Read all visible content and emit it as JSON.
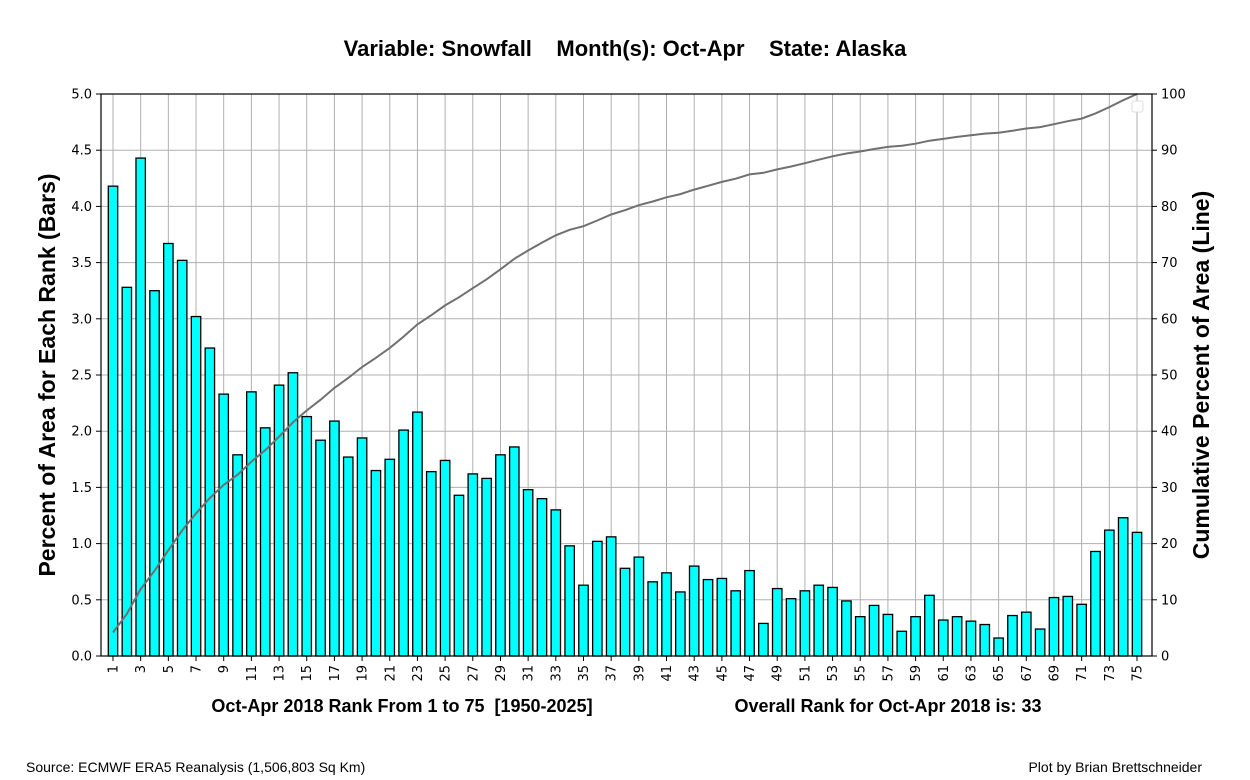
{
  "chart_data": {
    "type": "bar",
    "title": "Variable: Snowfall    Month(s): Oct-Apr    State: Alaska",
    "xlabel": "Oct-Apr 2018 Rank From 1 to 75  [1950-2025]",
    "xlabel_right": "Overall Rank for Oct-Apr 2018 is: 33",
    "ylabel": "Percent of Area for Each Rank (Bars)",
    "ylabel_right": "Cumulative Percent of Area (Line)",
    "ylim": [
      0,
      5.0
    ],
    "ylim_right": [
      0,
      100
    ],
    "yticks": [
      "0.0",
      "0.5",
      "1.0",
      "1.5",
      "2.0",
      "2.5",
      "3.0",
      "3.5",
      "4.0",
      "4.5",
      "5.0"
    ],
    "yticks_right": [
      "0",
      "10",
      "20",
      "30",
      "40",
      "50",
      "60",
      "70",
      "80",
      "90",
      "100"
    ],
    "grid": true,
    "bar_color": "#00ffff",
    "line_color": "#707070",
    "categories": [
      1,
      2,
      3,
      4,
      5,
      6,
      7,
      8,
      9,
      10,
      11,
      12,
      13,
      14,
      15,
      16,
      17,
      18,
      19,
      20,
      21,
      22,
      23,
      24,
      25,
      26,
      27,
      28,
      29,
      30,
      31,
      32,
      33,
      34,
      35,
      36,
      37,
      38,
      39,
      40,
      41,
      42,
      43,
      44,
      45,
      46,
      47,
      48,
      49,
      50,
      51,
      52,
      53,
      54,
      55,
      56,
      57,
      58,
      59,
      60,
      61,
      62,
      63,
      64,
      65,
      66,
      67,
      68,
      69,
      70,
      71,
      72,
      73,
      74,
      75
    ],
    "series": [
      {
        "name": "Percent of Area (Bars)",
        "type": "bar",
        "values": [
          4.18,
          3.28,
          4.43,
          3.25,
          3.67,
          3.52,
          3.02,
          2.74,
          2.33,
          1.79,
          2.35,
          2.03,
          2.41,
          2.52,
          2.13,
          1.92,
          2.09,
          1.77,
          1.94,
          1.65,
          1.75,
          2.01,
          2.17,
          1.64,
          1.74,
          1.43,
          1.62,
          1.58,
          1.79,
          1.86,
          1.48,
          1.4,
          1.3,
          0.98,
          0.63,
          1.02,
          1.06,
          0.78,
          0.88,
          0.66,
          0.74,
          0.57,
          0.8,
          0.68,
          0.69,
          0.58,
          0.76,
          0.29,
          0.6,
          0.51,
          0.58,
          0.63,
          0.61,
          0.49,
          0.35,
          0.45,
          0.37,
          0.22,
          0.35,
          0.54,
          0.32,
          0.35,
          0.31,
          0.28,
          0.16,
          0.36,
          0.39,
          0.24,
          0.52,
          0.53,
          0.46,
          0.93,
          1.12,
          1.23,
          1.1
        ]
      },
      {
        "name": "Cumulative Percent of Area (Line)",
        "type": "line",
        "axis": "right",
        "values": "cumulative sum of bar values scaled to 100"
      }
    ],
    "legend": "top-right (empty)"
  },
  "footer": {
    "source": "Source: ECMWF ERA5 Reanalysis (1,506,803 Sq Km)",
    "credit": "Plot by Brian Brettschneider"
  }
}
